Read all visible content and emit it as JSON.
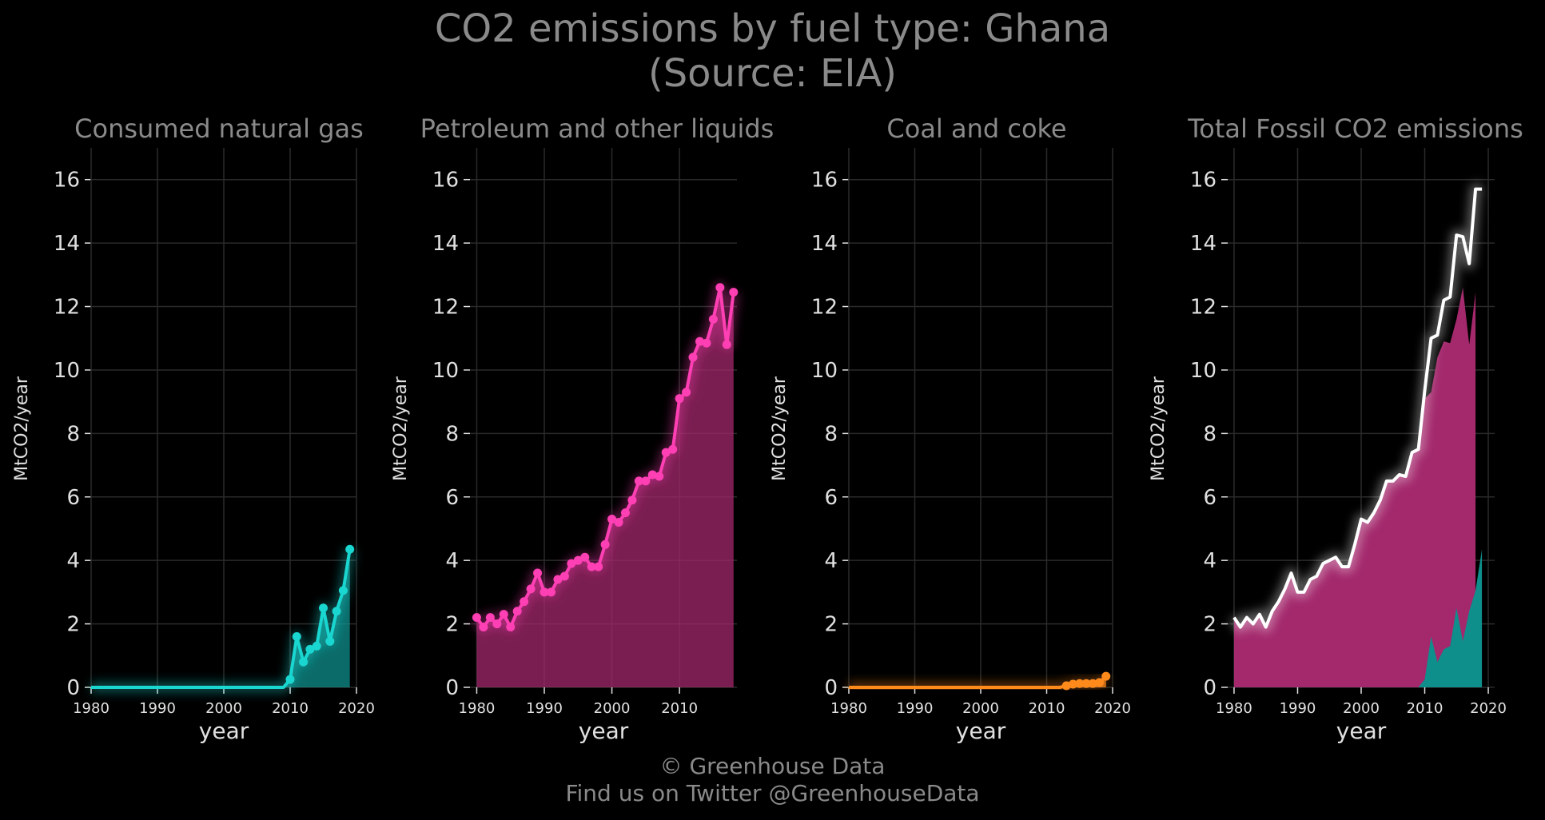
{
  "title_line1": "CO2 emissions by fuel type: Ghana",
  "title_line2": "(Source: EIA)",
  "footer_line1": "© Greenhouse Data",
  "footer_line2": "Find us on Twitter @GreenhouseData",
  "colors": {
    "background": "#000000",
    "grid": "#2a2a2a",
    "text": "#8a8a8a",
    "tick_text": "#e0e0e0",
    "gas": "#1ad6d0",
    "gas_fill": "#0f8f8c",
    "petroleum": "#ff3fb4",
    "petroleum_fill": "#a3286c",
    "coal": "#ff8a1c",
    "total": "#ffffff"
  },
  "chart_data": [
    {
      "type": "area",
      "title": "Consumed natural gas",
      "xlabel": "year",
      "ylabel": "MtCO2/year",
      "xlim": [
        1980,
        2020
      ],
      "ylim": [
        0,
        17
      ],
      "xticks": [
        1980,
        1990,
        2000,
        2010,
        2020
      ],
      "yticks": [
        0,
        2,
        4,
        6,
        8,
        10,
        12,
        14,
        16
      ],
      "grid": true,
      "series": [
        {
          "color": "#1ad6d0",
          "x": [
            1980,
            1981,
            1982,
            1983,
            1984,
            1985,
            1986,
            1987,
            1988,
            1989,
            1990,
            1991,
            1992,
            1993,
            1994,
            1995,
            1996,
            1997,
            1998,
            1999,
            2000,
            2001,
            2002,
            2003,
            2004,
            2005,
            2006,
            2007,
            2008,
            2009,
            2010,
            2011,
            2012,
            2013,
            2014,
            2015,
            2016,
            2017,
            2018,
            2019
          ],
          "values": [
            0,
            0,
            0,
            0,
            0,
            0,
            0,
            0,
            0,
            0,
            0,
            0,
            0,
            0,
            0,
            0,
            0,
            0,
            0,
            0,
            0,
            0,
            0,
            0,
            0,
            0,
            0,
            0,
            0,
            0,
            0.25,
            1.6,
            0.8,
            1.2,
            1.3,
            2.5,
            1.45,
            2.4,
            3.05,
            4.35
          ],
          "markers_from": 2010
        }
      ]
    },
    {
      "type": "area",
      "title": "Petroleum and other liquids",
      "xlabel": "year",
      "ylabel": "MtCO2/year",
      "xlim": [
        1979,
        2018.5
      ],
      "ylim": [
        0,
        17
      ],
      "xticks": [
        1980,
        1990,
        2000,
        2010
      ],
      "yticks": [
        0,
        2,
        4,
        6,
        8,
        10,
        12,
        14,
        16
      ],
      "grid": true,
      "series": [
        {
          "color": "#ff3fb4",
          "x": [
            1980,
            1981,
            1982,
            1983,
            1984,
            1985,
            1986,
            1987,
            1988,
            1989,
            1990,
            1991,
            1992,
            1993,
            1994,
            1995,
            1996,
            1997,
            1998,
            1999,
            2000,
            2001,
            2002,
            2003,
            2004,
            2005,
            2006,
            2007,
            2008,
            2009,
            2010,
            2011,
            2012,
            2013,
            2014,
            2015,
            2016,
            2017,
            2018
          ],
          "values": [
            2.2,
            1.9,
            2.2,
            2.0,
            2.3,
            1.9,
            2.4,
            2.7,
            3.1,
            3.6,
            3.0,
            3.0,
            3.4,
            3.5,
            3.9,
            4.0,
            4.1,
            3.8,
            3.8,
            4.5,
            5.3,
            5.2,
            5.5,
            5.9,
            6.5,
            6.5,
            6.7,
            6.65,
            7.4,
            7.5,
            9.1,
            9.3,
            10.4,
            10.9,
            10.85,
            11.6,
            12.6,
            10.8,
            12.45
          ],
          "markers_from": 1980
        }
      ]
    },
    {
      "type": "area",
      "title": "Coal and coke",
      "xlabel": "year",
      "ylabel": "MtCO2/year",
      "xlim": [
        1980,
        2020
      ],
      "ylim": [
        0,
        17
      ],
      "xticks": [
        1980,
        1990,
        2000,
        2010,
        2020
      ],
      "yticks": [
        0,
        2,
        4,
        6,
        8,
        10,
        12,
        14,
        16
      ],
      "grid": true,
      "series": [
        {
          "color": "#ff8a1c",
          "x": [
            1980,
            1981,
            1982,
            1983,
            1984,
            1985,
            1986,
            1987,
            1988,
            1989,
            1990,
            1991,
            1992,
            1993,
            1994,
            1995,
            1996,
            1997,
            1998,
            1999,
            2000,
            2001,
            2002,
            2003,
            2004,
            2005,
            2006,
            2007,
            2008,
            2009,
            2010,
            2011,
            2012,
            2013,
            2014,
            2015,
            2016,
            2017,
            2018,
            2019
          ],
          "values": [
            0,
            0,
            0,
            0,
            0,
            0,
            0,
            0,
            0,
            0,
            0,
            0,
            0,
            0,
            0,
            0,
            0,
            0,
            0,
            0,
            0,
            0,
            0,
            0,
            0,
            0,
            0,
            0,
            0,
            0,
            0,
            0,
            0,
            0.05,
            0.1,
            0.12,
            0.12,
            0.12,
            0.15,
            0.35
          ],
          "markers_from": 2013
        }
      ]
    },
    {
      "type": "area",
      "title": "Total Fossil CO2 emissions",
      "xlabel": "year",
      "ylabel": "MtCO2/year",
      "xlim": [
        1979,
        2021
      ],
      "ylim": [
        0,
        17
      ],
      "xticks": [
        1980,
        1990,
        2000,
        2010,
        2020
      ],
      "yticks": [
        0,
        2,
        4,
        6,
        8,
        10,
        12,
        14,
        16
      ],
      "grid": true,
      "series": [
        {
          "color": "#a3286c",
          "x": [
            1980,
            1981,
            1982,
            1983,
            1984,
            1985,
            1986,
            1987,
            1988,
            1989,
            1990,
            1991,
            1992,
            1993,
            1994,
            1995,
            1996,
            1997,
            1998,
            1999,
            2000,
            2001,
            2002,
            2003,
            2004,
            2005,
            2006,
            2007,
            2008,
            2009,
            2010,
            2011,
            2012,
            2013,
            2014,
            2015,
            2016,
            2017,
            2018
          ],
          "values": [
            2.2,
            1.9,
            2.2,
            2.0,
            2.3,
            1.9,
            2.4,
            2.7,
            3.1,
            3.6,
            3.0,
            3.0,
            3.4,
            3.5,
            3.9,
            4.0,
            4.1,
            3.8,
            3.8,
            4.5,
            5.3,
            5.2,
            5.5,
            5.9,
            6.5,
            6.5,
            6.7,
            6.65,
            7.4,
            7.5,
            9.1,
            9.3,
            10.4,
            10.9,
            10.85,
            11.6,
            12.6,
            10.8,
            12.45
          ]
        },
        {
          "color": "#0f8f8c",
          "x": [
            2009,
            2010,
            2011,
            2012,
            2013,
            2014,
            2015,
            2016,
            2017,
            2018,
            2019
          ],
          "values": [
            0,
            0.25,
            1.6,
            0.8,
            1.2,
            1.3,
            2.5,
            1.45,
            2.4,
            3.05,
            4.35
          ]
        },
        {
          "color": "#ffffff",
          "x": [
            1980,
            1981,
            1982,
            1983,
            1984,
            1985,
            1986,
            1987,
            1988,
            1989,
            1990,
            1991,
            1992,
            1993,
            1994,
            1995,
            1996,
            1997,
            1998,
            1999,
            2000,
            2001,
            2002,
            2003,
            2004,
            2005,
            2006,
            2007,
            2008,
            2009,
            2010,
            2011,
            2012,
            2013,
            2014,
            2015,
            2016,
            2017,
            2018,
            2019
          ],
          "values": [
            2.2,
            1.9,
            2.2,
            2.0,
            2.3,
            1.9,
            2.4,
            2.7,
            3.1,
            3.6,
            3.0,
            3.0,
            3.4,
            3.5,
            3.9,
            4.0,
            4.1,
            3.8,
            3.8,
            4.5,
            5.3,
            5.2,
            5.5,
            5.9,
            6.5,
            6.5,
            6.7,
            6.65,
            7.4,
            7.5,
            9.35,
            11.0,
            11.1,
            12.2,
            12.3,
            14.25,
            14.2,
            13.35,
            15.7,
            15.7
          ]
        }
      ]
    }
  ]
}
